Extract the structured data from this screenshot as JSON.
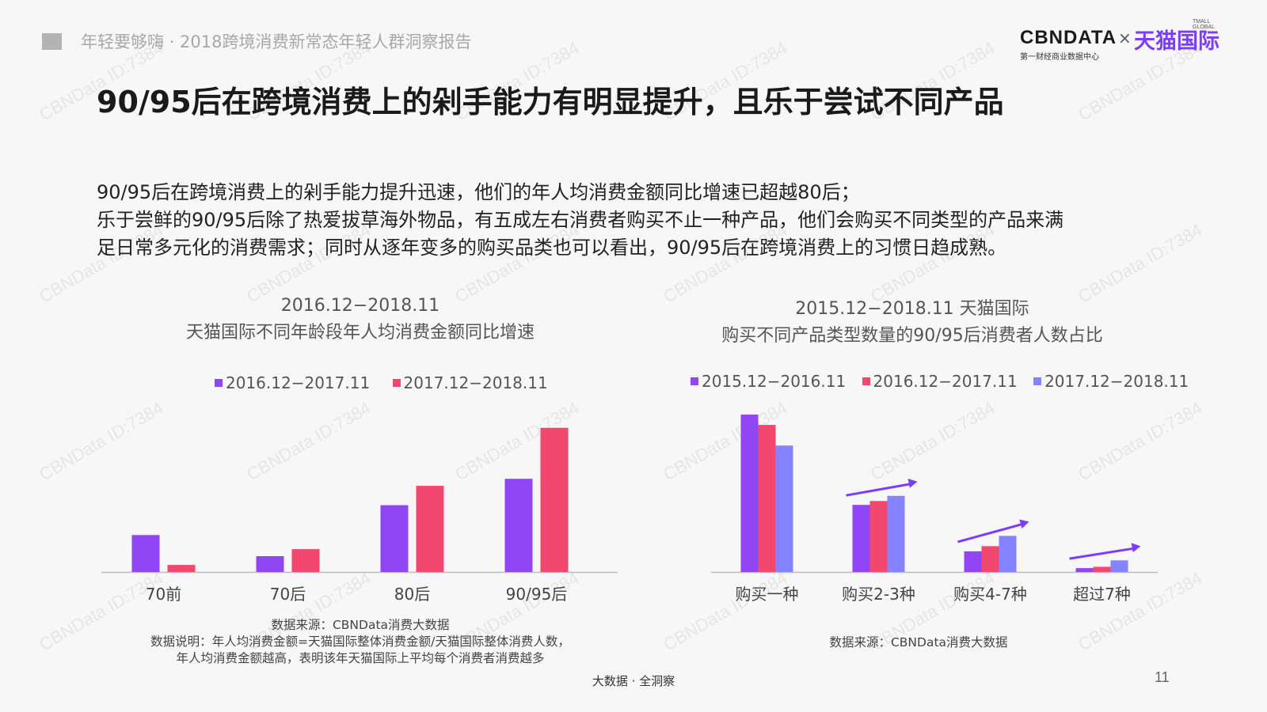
{
  "header": {
    "report_title": "年轻要够嗨 · 2018跨境消费新常态年轻人群洞察报告",
    "logo_cbndata": "CBNDATA",
    "logo_cross": "×",
    "logo_tmall": "天猫国际",
    "logo_tmall_small": "TMALL GLOBAL",
    "logo_sub": "第一财经商业数据中心"
  },
  "main_title": "90/95后在跨境消费上的剁手能力有明显提升，且乐于尝试不同产品",
  "description": [
    "90/95后在跨境消费上的剁手能力提升迅速，他们的年人均消费金额同比增速已超越80后；",
    "乐于尝鲜的90/95后除了热爱拔草海外物品，有五成左右消费者购买不止一种产品，他们会购买不同类型的产品来满",
    "足日常多元化的消费需求；同时从逐年变多的购买品类也可以看出，90/95后在跨境消费上的习惯日趋成熟。"
  ],
  "watermark_text": "CBNData ID:7384",
  "chart_data": [
    {
      "type": "bar",
      "title_line1": "2016.12−2018.11",
      "title_line2": "天猫国际不同年龄段年人均消费金额同比增速",
      "categories": [
        "70前",
        "70后",
        "80后",
        "90/95后"
      ],
      "series": [
        {
          "name": "2016.12−2017.11",
          "color": "#9146f5",
          "values": [
            21,
            9,
            38,
            53
          ]
        },
        {
          "name": "2017.12−2018.11",
          "color": "#f2486f",
          "values": [
            4,
            13,
            49,
            82
          ]
        }
      ],
      "ylim": [
        0,
        90
      ],
      "y_axis_shown": false,
      "note_lines": [
        "数据来源：CBNData消费大数据",
        "数据说明：年人均消费金额=天猫国际整体消费金额/天猫国际整体消费人数，",
        "年人均消费金额越高，表明该年天猫国际上平均每个消费者消费越多"
      ]
    },
    {
      "type": "bar",
      "title_line1": "2015.12−2018.11 天猫国际",
      "title_line2": "购买不同产品类型数量的90/95后消费者人数占比",
      "categories": [
        "购买一种",
        "购买2-3种",
        "购买4-7种",
        "超过7种"
      ],
      "series": [
        {
          "name": "2015.12−2016.11",
          "color": "#9146f5",
          "values": [
            61,
            26,
            8,
            1.5
          ]
        },
        {
          "name": "2016.12−2017.11",
          "color": "#f2486f",
          "values": [
            57,
            27.5,
            10,
            2
          ]
        },
        {
          "name": "2017.12−2018.11",
          "color": "#8583ff",
          "values": [
            49,
            29.5,
            14,
            4.5
          ]
        }
      ],
      "trend_arrows": [
        false,
        true,
        true,
        true
      ],
      "trend_arrow_color": "#7a3cff",
      "ylim": [
        0,
        65
      ],
      "y_axis_shown": false,
      "note_lines": [
        "数据来源：CBNData消费大数据"
      ]
    }
  ],
  "footer": {
    "center_text": "大数据 · 全洞察",
    "page_number": "11"
  }
}
